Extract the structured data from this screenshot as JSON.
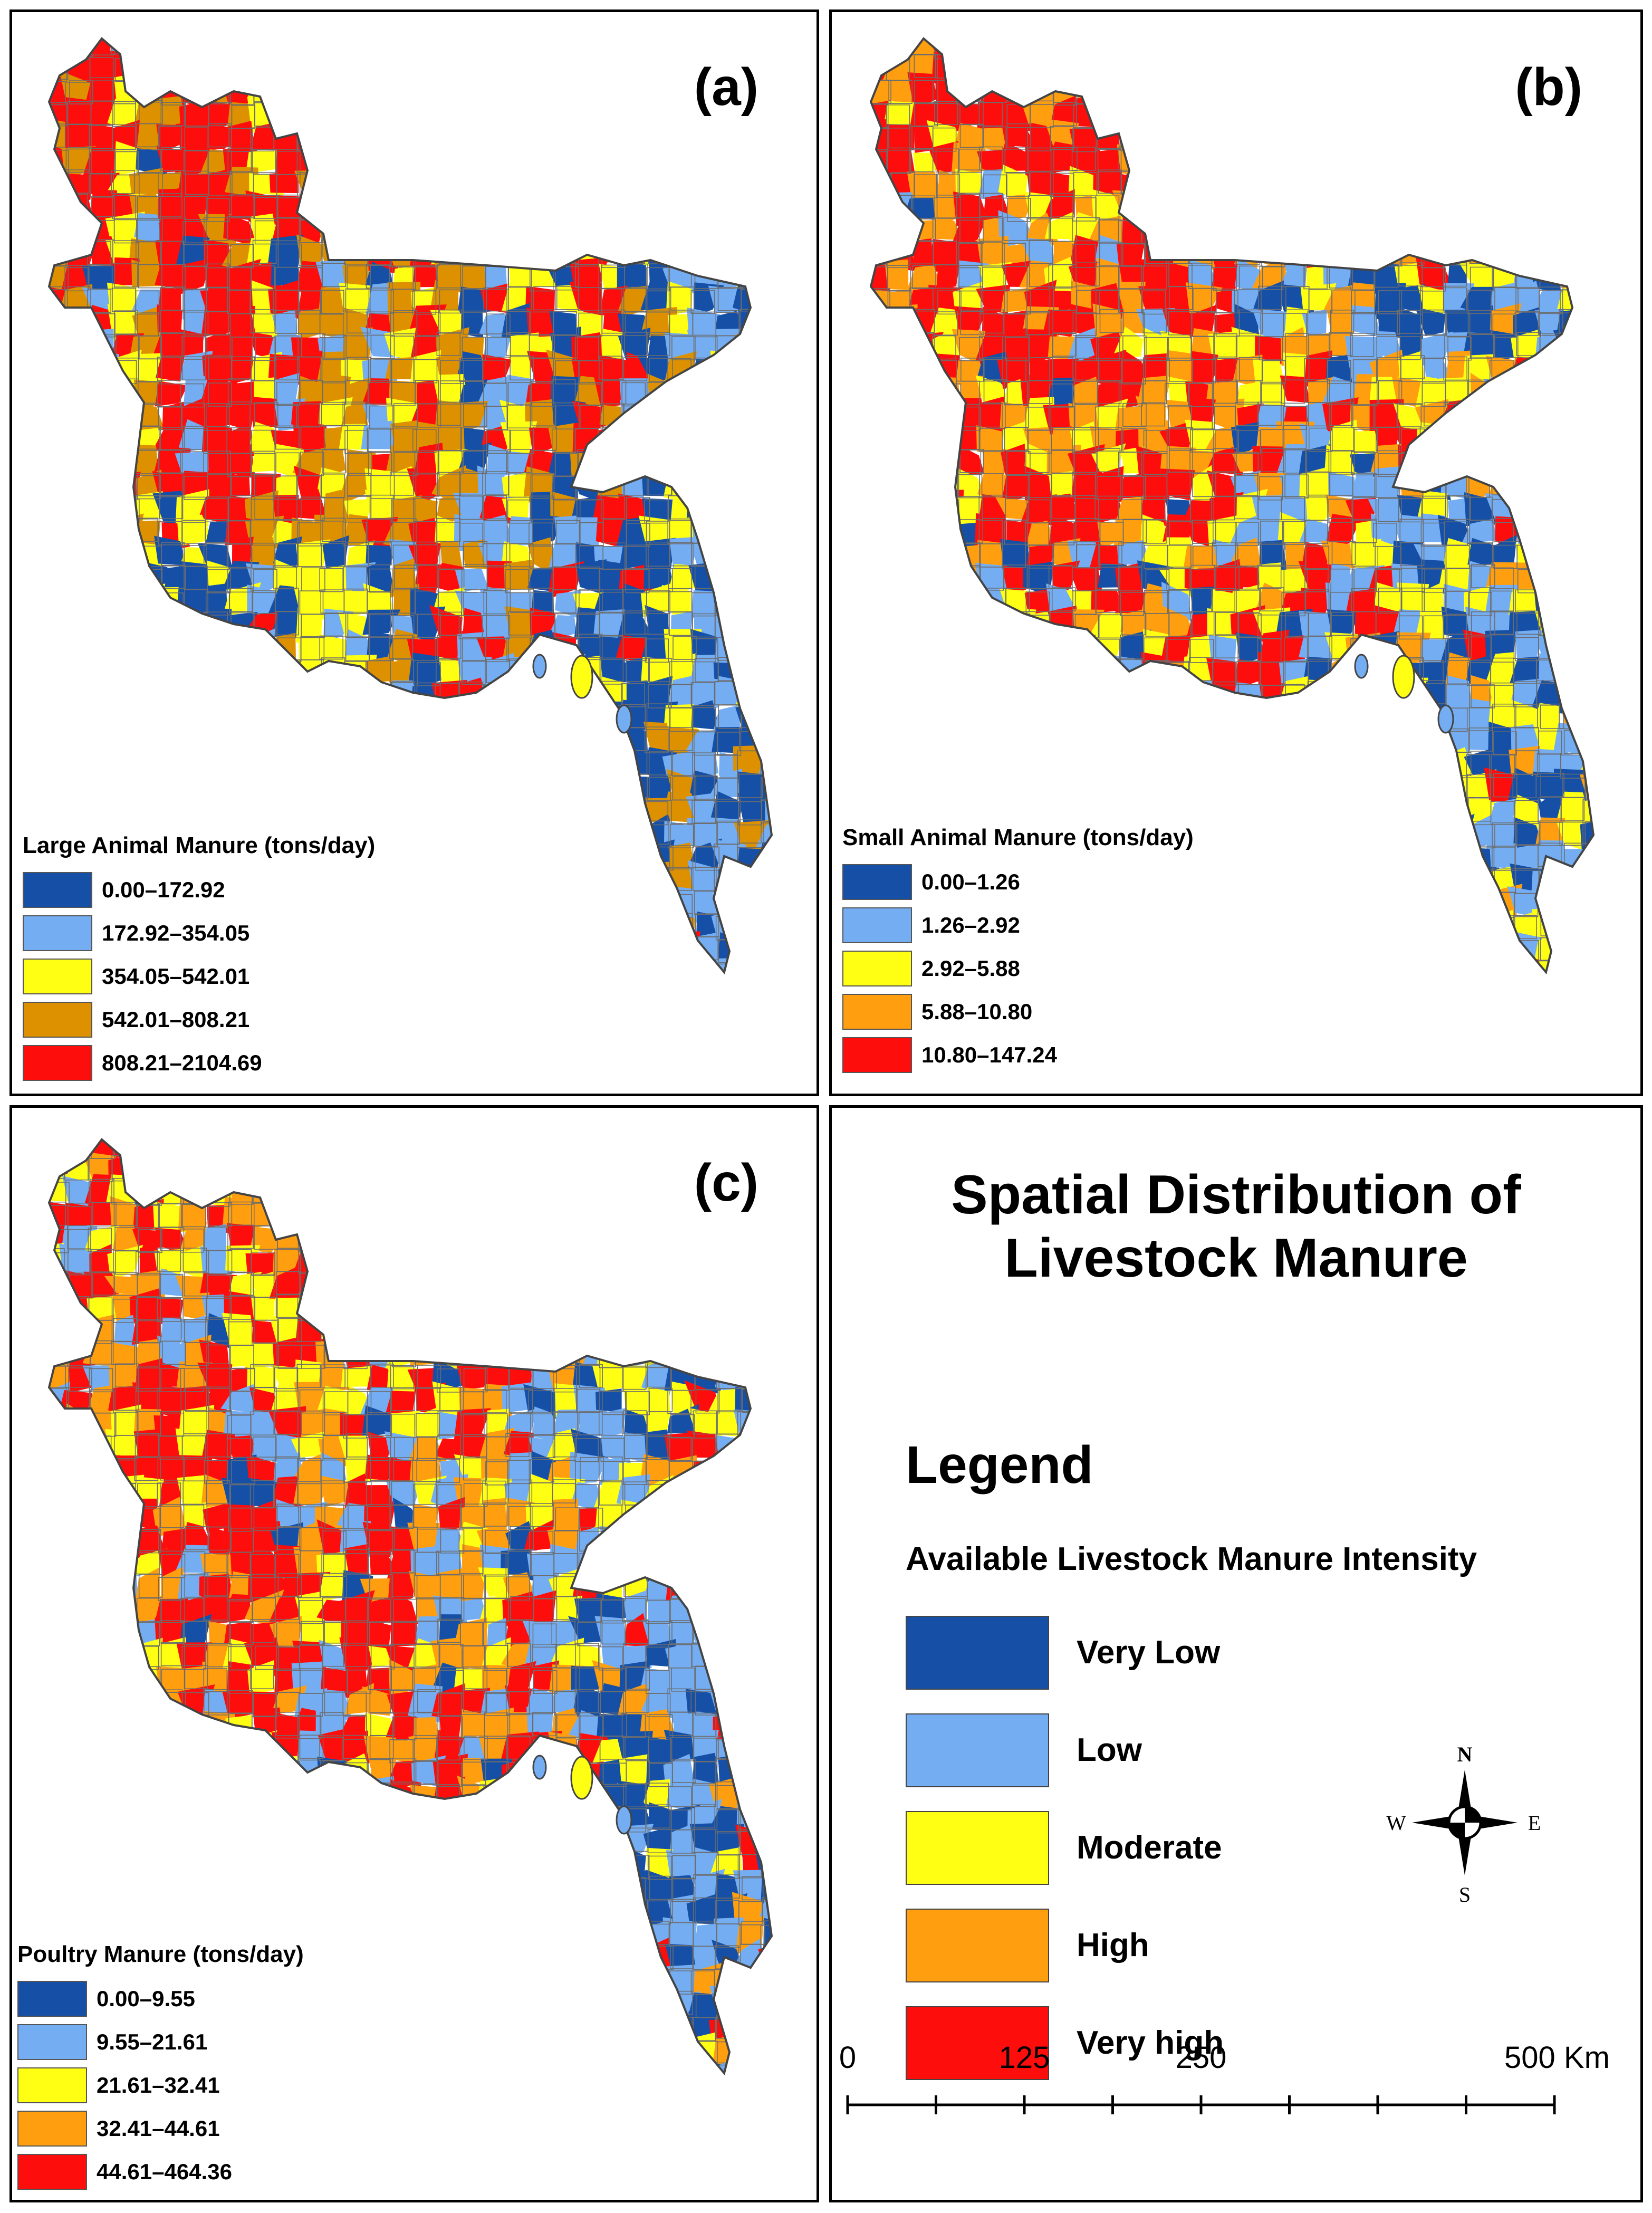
{
  "classes": [
    "very-low",
    "low",
    "moderate",
    "high",
    "very-high"
  ],
  "palettes": {
    "a": [
      "#1650a6",
      "#74adf2",
      "#ffff14",
      "#dd9100",
      "#fe0d0d"
    ],
    "b": [
      "#1650a6",
      "#74adf2",
      "#ffff14",
      "#ff9f0f",
      "#fe0d0d"
    ],
    "c": [
      "#1650a6",
      "#74adf2",
      "#ffff14",
      "#ff9f0f",
      "#fe0d0d"
    ]
  },
  "panels": {
    "a": {
      "label": "(a)",
      "legend_title": "Large Animal Manure (tons/day)",
      "ranges": [
        "0.00–172.92",
        "172.92–354.05",
        "354.05–542.01",
        "542.01–808.21",
        "808.21–2104.69"
      ]
    },
    "b": {
      "label": "(b)",
      "legend_title": "Small Animal Manure (tons/day)",
      "ranges": [
        "0.00–1.26",
        "1.26–2.92",
        "2.92–5.88",
        "5.88–10.80",
        "10.80–147.24"
      ]
    },
    "c": {
      "label": "(c)",
      "legend_title": "Poultry Manure (tons/day)",
      "ranges": [
        "0.00–9.55",
        "9.55–21.61",
        "21.61–32.41",
        "32.41–44.61",
        "44.61–464.36"
      ]
    }
  },
  "summary": {
    "title_line1": "Spatial Distribution of",
    "title_line2": "Livestock Manure",
    "legend_heading": "Legend",
    "legend_subtitle": "Available Livestock Manure Intensity",
    "intensity_levels": [
      "Very Low",
      "Low",
      "Moderate",
      "High",
      "Very high"
    ],
    "intensity_colors": [
      "#1650a6",
      "#74adf2",
      "#ffff14",
      "#ff9f0f",
      "#fe0d0d"
    ]
  },
  "compass": {
    "n": "N",
    "s": "S",
    "e": "E",
    "w": "W"
  },
  "scale": {
    "ticks": [
      "0",
      "125",
      "250",
      "500 Km"
    ]
  }
}
